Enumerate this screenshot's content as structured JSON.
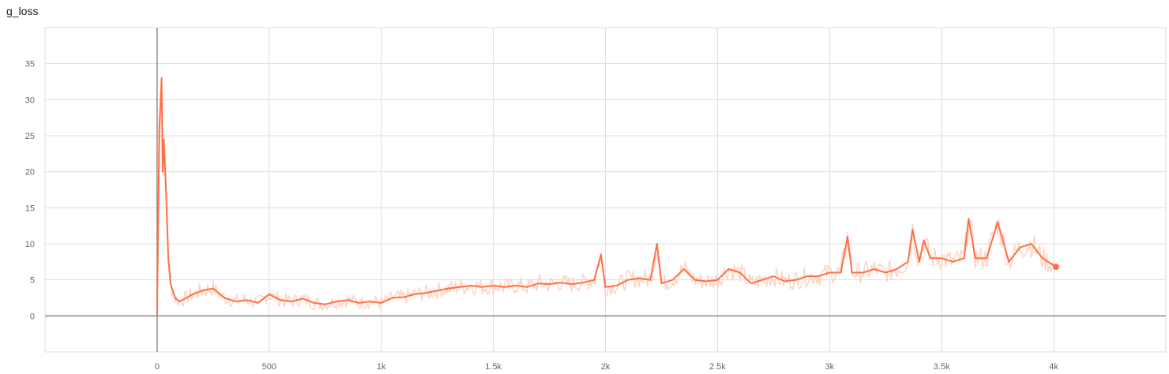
{
  "chart_data": {
    "type": "line",
    "title": "g_loss",
    "xlabel": "",
    "ylabel": "",
    "xlim": [
      -500,
      4500
    ],
    "ylim": [
      -5,
      40
    ],
    "x_ticks": [
      0,
      500,
      1000,
      1500,
      2000,
      2500,
      3000,
      3500,
      4000
    ],
    "x_tick_labels": [
      "0",
      "500",
      "1k",
      "1.5k",
      "2k",
      "2.5k",
      "3k",
      "3.5k",
      "4k"
    ],
    "y_ticks": [
      0,
      5,
      10,
      15,
      20,
      25,
      30,
      35
    ],
    "y_tick_labels": [
      "0",
      "5",
      "10",
      "15",
      "20",
      "25",
      "30",
      "35"
    ],
    "grid": true,
    "series": [
      {
        "color": "#ff7043",
        "raw_color": "#ffd3c4",
        "x": [
          0,
          10,
          20,
          25,
          30,
          40,
          50,
          60,
          80,
          100,
          130,
          160,
          200,
          250,
          300,
          350,
          400,
          450,
          500,
          550,
          600,
          650,
          700,
          750,
          800,
          850,
          900,
          950,
          1000,
          1050,
          1100,
          1150,
          1200,
          1250,
          1300,
          1350,
          1400,
          1450,
          1500,
          1550,
          1600,
          1650,
          1700,
          1750,
          1800,
          1850,
          1900,
          1950,
          1980,
          2000,
          2050,
          2100,
          2150,
          2200,
          2230,
          2250,
          2300,
          2350,
          2400,
          2450,
          2500,
          2550,
          2600,
          2650,
          2700,
          2750,
          2800,
          2850,
          2900,
          2950,
          3000,
          3050,
          3080,
          3100,
          3150,
          3200,
          3250,
          3300,
          3350,
          3370,
          3400,
          3420,
          3450,
          3500,
          3550,
          3600,
          3620,
          3650,
          3700,
          3750,
          3800,
          3850,
          3900,
          3950,
          4000,
          4010
        ],
        "y": [
          0,
          26,
          33,
          20,
          24.5,
          17,
          8,
          4.5,
          2.5,
          2.0,
          2.5,
          3.0,
          3.5,
          3.8,
          2.5,
          2.0,
          2.2,
          1.8,
          3.0,
          2.2,
          2.0,
          2.4,
          1.8,
          1.6,
          2.0,
          2.2,
          1.8,
          2.0,
          1.8,
          2.5,
          2.6,
          3.0,
          3.2,
          3.5,
          3.8,
          4.0,
          4.2,
          4.0,
          4.2,
          4.0,
          4.2,
          4.0,
          4.5,
          4.4,
          4.6,
          4.4,
          4.6,
          5.0,
          8.5,
          4.0,
          4.2,
          5.0,
          5.2,
          5.0,
          10.0,
          4.5,
          5.0,
          6.5,
          5.0,
          4.8,
          5.0,
          6.5,
          6.0,
          4.5,
          5.0,
          5.5,
          4.8,
          5.0,
          5.5,
          5.5,
          6.0,
          6.0,
          11.0,
          6.0,
          6.0,
          6.5,
          6.0,
          6.5,
          7.5,
          12.0,
          7.5,
          10.5,
          8.0,
          8.0,
          7.5,
          8.0,
          13.5,
          8.0,
          8.0,
          13.0,
          7.5,
          9.5,
          10.0,
          8.0,
          7.0,
          6.8
        ]
      }
    ]
  }
}
